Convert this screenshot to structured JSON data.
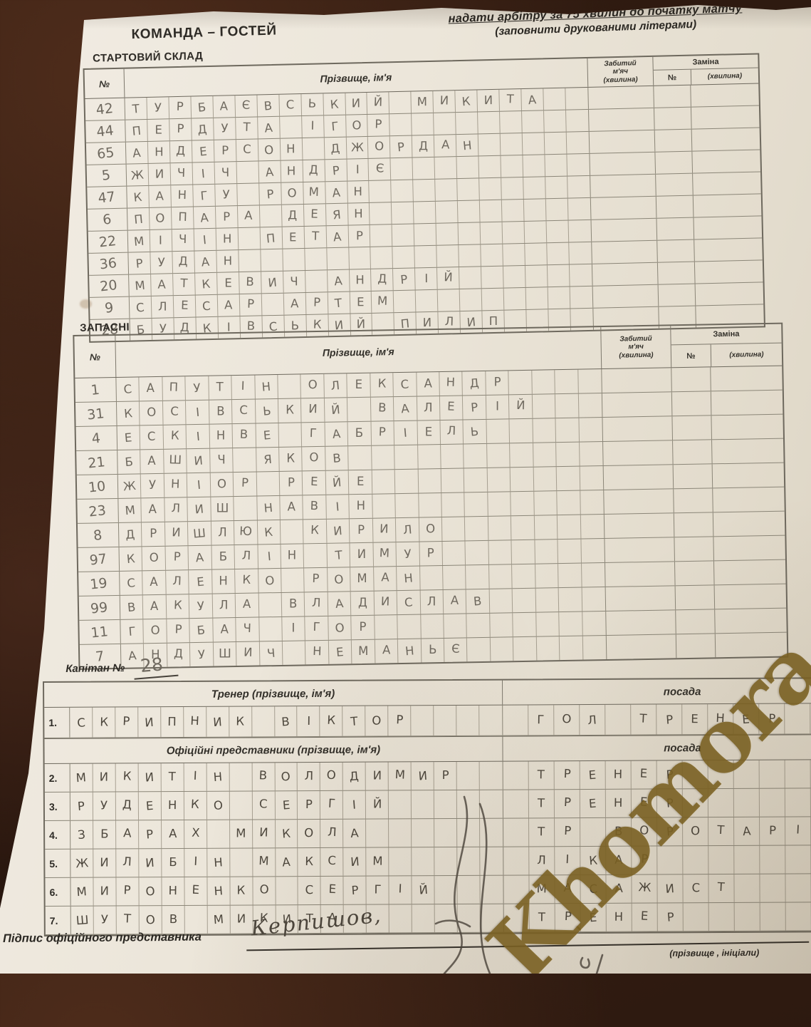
{
  "header": {
    "team_label": "КОМАНДА – ГОСТЕЙ",
    "instruction_line1": "надати арбітру за 75 хвилин до початку матчу",
    "instruction_line2": "(заповнити друкованими літерами)"
  },
  "table_headers": {
    "num": "№",
    "name": "Прізвище, ім'я",
    "goal_l1": "Забитий",
    "goal_l2": "м'яч",
    "goal_l3": "(хвилина)",
    "sub": "Заміна",
    "sub_num": "№",
    "sub_min": "(хвилина)"
  },
  "starting": {
    "title": "СТАРТОВИЙ СКЛАД",
    "rows": [
      {
        "num": "42",
        "name": "ТУРБАЄВСЬКИЙ МИКИТА"
      },
      {
        "num": "44",
        "name": "ПЕРДУТА ІГОР"
      },
      {
        "num": "65",
        "name": "АНДЕРСОН ДЖОРДАН"
      },
      {
        "num": "5",
        "name": "ЖИЧІЧ АНДРІЄ"
      },
      {
        "num": "47",
        "name": "КАНГУ РОМАН"
      },
      {
        "num": "6",
        "name": "ПОПАРА ДЕЯН"
      },
      {
        "num": "22",
        "name": "МІЧІН ПЕТАР"
      },
      {
        "num": "36",
        "name": "РУДАН"
      },
      {
        "num": "20",
        "name": "МАТКЕВИЧ АНДРІЙ"
      },
      {
        "num": "9",
        "name": "СЛЕСАР АРТЕМ"
      },
      {
        "num": "28",
        "name": "БУДКІВСЬКИЙ ПИЛИП"
      }
    ]
  },
  "substitutes": {
    "title": "ЗАПАСНІ",
    "rows": [
      {
        "num": "1",
        "name": "САПУТІН ОЛЕКСАНДР"
      },
      {
        "num": "31",
        "name": "КОСІВСЬКИЙ ВАЛЕРІЙ"
      },
      {
        "num": "4",
        "name": "ЕСКІНВЕ ГАБРІЕЛЬ"
      },
      {
        "num": "21",
        "name": "БАШИЧ ЯКОВ"
      },
      {
        "num": "10",
        "name": "ЖУНІОР РЕЙЕ"
      },
      {
        "num": "23",
        "name": "МАЛИШ НАВІН"
      },
      {
        "num": "8",
        "name": "ДРИШЛЮК КИРИЛО"
      },
      {
        "num": "97",
        "name": "КОРАБЛІН ТИМУР"
      },
      {
        "num": "19",
        "name": "САЛЕНКО РОМАН"
      },
      {
        "num": "99",
        "name": "ВАКУЛА ВЛАДИСЛАВ"
      },
      {
        "num": "11",
        "name": "ГОРБАЧ ІГОР"
      },
      {
        "num": "7",
        "name": "АНДУШИЧ НЕМАНЬЄ"
      }
    ]
  },
  "captain": {
    "label": "Капітан №",
    "number": "28"
  },
  "officials": {
    "coach_header": "Тренер (прізвище, ім'я)",
    "position_header": "посада",
    "reps_header": "Офіційні представники (прізвище, ім'я)",
    "position_header2": "посада",
    "rows": [
      {
        "num": "1.",
        "name": "СКРИПНИК ВІКТОР",
        "position": "ГОЛ ТРЕНЕР"
      },
      {
        "num": "2.",
        "name": "МИКИТІН ВОЛОДИМИР",
        "position": "ТРЕНЕР"
      },
      {
        "num": "3.",
        "name": "РУДЕНКО СЕРГІЙ",
        "position": "ТРЕНЕР"
      },
      {
        "num": "4.",
        "name": "ЗБАРАХ МИКОЛА",
        "position": "ТР ВОРОТАРІВ"
      },
      {
        "num": "5.",
        "name": "ЖИЛИБІН МАКСИМ",
        "position": "ЛІКАР"
      },
      {
        "num": "6.",
        "name": "МИРОНЕНКО СЕРГІЙ",
        "position": "МАСАЖИСТ"
      },
      {
        "num": "7.",
        "name": "ШУТОВ МИКИТА",
        "position": "ТРЕНЕР"
      }
    ]
  },
  "footer": {
    "signature_label": "Підпис офіційного представника",
    "signature_text": "Керпишов,",
    "signature_caption": "(прізвище , ініціали)"
  },
  "watermark": {
    "text": "Khomora",
    "color": "#795f20"
  },
  "colors": {
    "background": "#2a180f",
    "paper": "#ece6da",
    "grid_line": "#8b8678",
    "printed_text": "#2e2b26",
    "pencil_ink": "#6f695f",
    "pen_ink": "#4e483e"
  }
}
